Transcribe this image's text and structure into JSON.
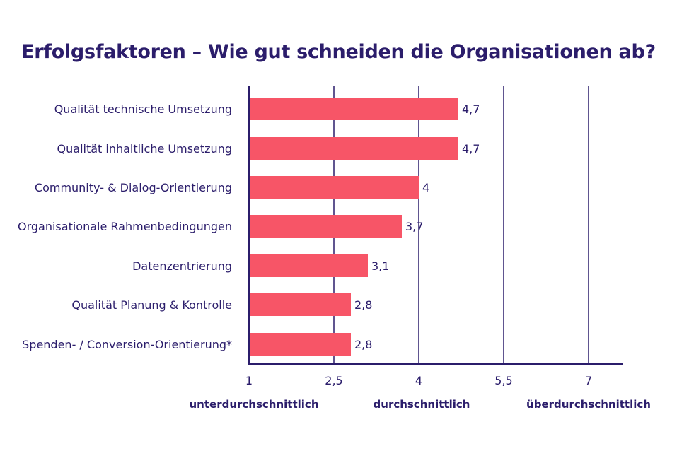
{
  "chart_data": {
    "type": "bar",
    "orientation": "horizontal",
    "title": "Erfolgsfaktoren – Wie gut schneiden die Organisationen ab?",
    "categories": [
      "Qualität technische Umsetzung",
      "Qualität inhaltliche Umsetzung",
      "Community- & Dialog-Orientierung",
      "Organisationale Rahmenbedingungen",
      "Datenzentrierung",
      "Qualität Planung & Kontrolle",
      "Spenden- / Conversion-Orientierung*"
    ],
    "values": [
      4.7,
      4.7,
      4,
      3.7,
      3.1,
      2.8,
      2.8
    ],
    "value_labels": [
      "4,7",
      "4,7",
      "4",
      "3,7",
      "3,1",
      "2,8",
      "2,8"
    ],
    "xlim": [
      1,
      7.6
    ],
    "xticks": [
      1,
      2.5,
      4,
      5.5,
      7
    ],
    "xtick_labels": [
      "1",
      "2,5",
      "4",
      "5,5",
      "7"
    ],
    "scale_labels": [
      "unterdurchschnittlich",
      "durchschnittlich",
      "überdurchschnittlich"
    ],
    "xlabel": "",
    "ylabel": "",
    "grid": "vertical",
    "legend": "none",
    "colors": {
      "bar": "#f75567",
      "text": "#2b1d6b",
      "axis": "#2b1d6b"
    }
  }
}
